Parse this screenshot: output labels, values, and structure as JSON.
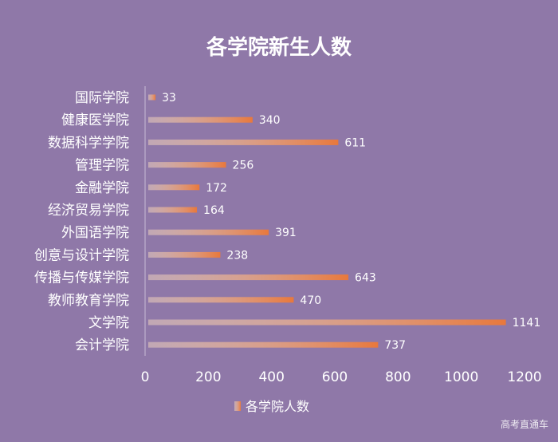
{
  "chart_data": {
    "type": "bar",
    "orientation": "horizontal",
    "title": "各学院新生人数",
    "categories": [
      "国际学院",
      "健康医学院",
      "数据科学学院",
      "管理学院",
      "金融学院",
      "经济贸易学院",
      "外国语学院",
      "创意与设计学院",
      "传播与传媒学院",
      "教师教育学院",
      "文学院",
      "会计学院"
    ],
    "series": [
      {
        "name": "各学院人数",
        "values": [
          33,
          340,
          611,
          256,
          172,
          164,
          391,
          238,
          643,
          470,
          1141,
          737
        ]
      }
    ],
    "xlim": [
      0,
      1200
    ],
    "xticks": [
      0,
      200,
      400,
      600,
      800,
      1000,
      1200
    ],
    "grid": false,
    "legend_position": "bottom",
    "data_labels": true
  },
  "colors": {
    "background": "#8f78a8",
    "bar_start": "#ffe3c4",
    "bar_end": "#e8783c",
    "text": "#ffffff"
  },
  "watermark": "高考直通车"
}
